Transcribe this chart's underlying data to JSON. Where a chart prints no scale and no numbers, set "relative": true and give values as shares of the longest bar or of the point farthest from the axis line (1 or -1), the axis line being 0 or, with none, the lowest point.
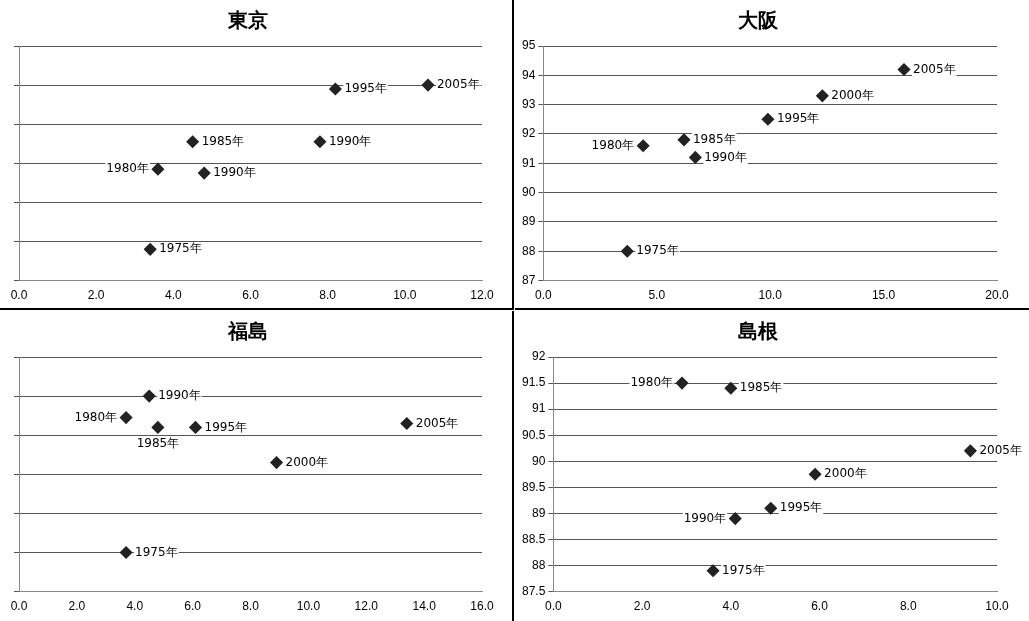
{
  "chart_data": [
    {
      "type": "scatter",
      "title": "東京",
      "relative": true,
      "tick_labels": "x",
      "grid": "y",
      "legend": false,
      "marker": "diamond",
      "x": [
        3.4,
        3.6,
        4.5,
        4.8,
        7.8,
        8.2,
        10.6
      ],
      "series": [
        {
          "color": "#222222",
          "values": [
            0.16,
            0.57,
            0.71,
            0.55,
            0.71,
            0.98,
            1
          ]
        }
      ],
      "xlim": [
        0,
        12
      ],
      "xticks": [
        {
          "value": 0,
          "label": "0.0"
        },
        {
          "value": 2,
          "label": "2.0"
        },
        {
          "value": 4,
          "label": "4.0"
        },
        {
          "value": 6,
          "label": "6.0"
        },
        {
          "value": 8,
          "label": "8.0"
        },
        {
          "value": 10,
          "label": "10.0"
        },
        {
          "value": 12,
          "label": "12.0"
        }
      ],
      "annotations": [
        {
          "text": "1975年",
          "x": 3.4,
          "y": 0.16
        },
        {
          "text": "1980年",
          "x": 3.6,
          "y": 0.57
        },
        {
          "text": "1985年",
          "x": 4.5,
          "y": 0.71
        },
        {
          "text": "1990年",
          "x": 4.8,
          "y": 0.55
        },
        {
          "text": "1990年",
          "x": 7.8,
          "y": 0.71
        },
        {
          "text": "1995年",
          "x": 8.2,
          "y": 0.98
        },
        {
          "text": "2005年",
          "x": 10.6,
          "y": 1
        }
      ]
    },
    {
      "type": "scatter",
      "title": "大阪",
      "grid": "y",
      "legend": false,
      "marker": "diamond",
      "x": [
        3.7,
        4.4,
        6.2,
        6.7,
        9.9,
        12.3,
        15.9
      ],
      "series": [
        {
          "color": "#222222",
          "values": [
            88.0,
            91.6,
            91.8,
            91.2,
            92.5,
            93.3,
            94.2
          ]
        }
      ],
      "xlim": [
        0,
        20
      ],
      "xticks": [
        {
          "value": 0,
          "label": "0.0"
        },
        {
          "value": 5,
          "label": "5.0"
        },
        {
          "value": 10,
          "label": "10.0"
        },
        {
          "value": 15,
          "label": "15.0"
        },
        {
          "value": 20,
          "label": "20.0"
        }
      ],
      "ylim": [
        87,
        95
      ],
      "yticks": [
        87,
        88,
        89,
        90,
        91,
        92,
        93,
        94,
        95
      ],
      "annotations": [
        {
          "text": "1975年",
          "x": 3.7,
          "y": 88.0
        },
        {
          "text": "1980年",
          "x": 4.4,
          "y": 91.6
        },
        {
          "text": "1985年",
          "x": 6.2,
          "y": 91.8
        },
        {
          "text": "1990年",
          "x": 6.7,
          "y": 91.2
        },
        {
          "text": "1995年",
          "x": 9.9,
          "y": 92.5
        },
        {
          "text": "2000年",
          "x": 12.3,
          "y": 93.3
        },
        {
          "text": "2005年",
          "x": 15.9,
          "y": 94.2
        }
      ]
    },
    {
      "type": "scatter",
      "title": "福島",
      "relative": true,
      "tick_labels": "x",
      "grid": "y",
      "legend": false,
      "marker": "diamond",
      "x": [
        3.7,
        3.7,
        4.8,
        4.5,
        6.1,
        8.9,
        13.4
      ],
      "series": [
        {
          "color": "#222222",
          "values": [
            0.2,
            0.89,
            0.84,
            1,
            0.84,
            0.66,
            0.86
          ]
        }
      ],
      "xlim": [
        0,
        16
      ],
      "xticks": [
        {
          "value": 0,
          "label": "0.0"
        },
        {
          "value": 2,
          "label": "2.0"
        },
        {
          "value": 4,
          "label": "4.0"
        },
        {
          "value": 6,
          "label": "6.0"
        },
        {
          "value": 8,
          "label": "8.0"
        },
        {
          "value": 10,
          "label": "10.0"
        },
        {
          "value": 12,
          "label": "12.0"
        },
        {
          "value": 14,
          "label": "14.0"
        },
        {
          "value": 16,
          "label": "16.0"
        }
      ],
      "annotations": [
        {
          "text": "1975年",
          "x": 3.7,
          "y": 0.2
        },
        {
          "text": "1980年",
          "x": 3.7,
          "y": 0.89
        },
        {
          "text": "1985年",
          "x": 4.8,
          "y": 0.84
        },
        {
          "text": "1990年",
          "x": 4.5,
          "y": 1
        },
        {
          "text": "1995年",
          "x": 6.1,
          "y": 0.84
        },
        {
          "text": "2000年",
          "x": 8.9,
          "y": 0.66
        },
        {
          "text": "2005年",
          "x": 13.4,
          "y": 0.86
        }
      ]
    },
    {
      "type": "scatter",
      "title": "島根",
      "grid": "y",
      "legend": false,
      "marker": "diamond",
      "x": [
        3.6,
        2.9,
        4.0,
        4.1,
        4.9,
        5.9,
        9.4
      ],
      "series": [
        {
          "color": "#222222",
          "values": [
            87.9,
            91.5,
            91.4,
            88.9,
            89.1,
            89.75,
            90.2
          ]
        }
      ],
      "xlim": [
        0,
        10
      ],
      "xticks": [
        {
          "value": 0,
          "label": "0.0"
        },
        {
          "value": 2,
          "label": "2.0"
        },
        {
          "value": 4,
          "label": "4.0"
        },
        {
          "value": 6,
          "label": "6.0"
        },
        {
          "value": 8,
          "label": "8.0"
        },
        {
          "value": 10,
          "label": "10.0"
        }
      ],
      "ylim": [
        87.5,
        92
      ],
      "yticks": [
        87.5,
        88,
        88.5,
        89,
        89.5,
        90,
        90.5,
        91,
        91.5,
        92
      ],
      "annotations": [
        {
          "text": "1975年",
          "x": 3.6,
          "y": 87.9
        },
        {
          "text": "1980年",
          "x": 2.9,
          "y": 91.5
        },
        {
          "text": "1985年",
          "x": 4.0,
          "y": 91.4
        },
        {
          "text": "1990年",
          "x": 4.1,
          "y": 88.9
        },
        {
          "text": "1995年",
          "x": 4.9,
          "y": 89.1
        },
        {
          "text": "2000年",
          "x": 5.9,
          "y": 89.75
        },
        {
          "text": "2005年",
          "x": 9.4,
          "y": 90.2
        }
      ]
    }
  ]
}
